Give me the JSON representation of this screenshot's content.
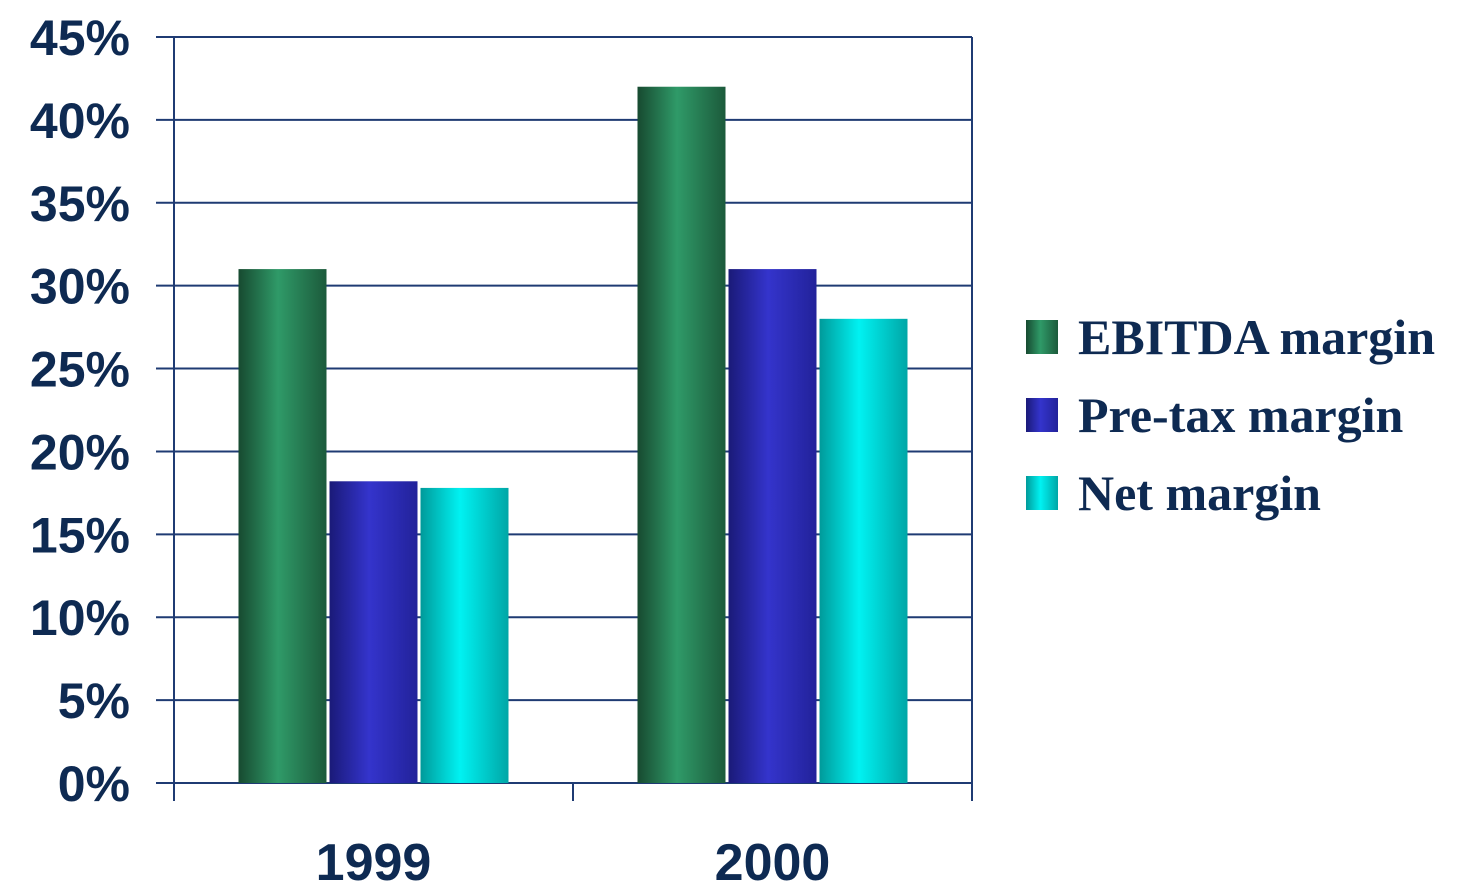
{
  "chart_data": {
    "type": "bar",
    "categories": [
      "1999",
      "2000"
    ],
    "series": [
      {
        "name": "EBITDA margin",
        "values": [
          31,
          42
        ],
        "color": "#2e8b5e"
      },
      {
        "name": "Pre-tax margin",
        "values": [
          18.2,
          31
        ],
        "color": "#3030c8"
      },
      {
        "name": "Net margin",
        "values": [
          17.8,
          28
        ],
        "color": "#00e0e0"
      }
    ],
    "ylim": [
      0,
      45
    ],
    "yticks": [
      "0%",
      "5%",
      "10%",
      "15%",
      "20%",
      "25%",
      "30%",
      "35%",
      "40%",
      "45%"
    ],
    "grid": true,
    "legend": "right",
    "title": "",
    "xlabel": "",
    "ylabel": ""
  }
}
